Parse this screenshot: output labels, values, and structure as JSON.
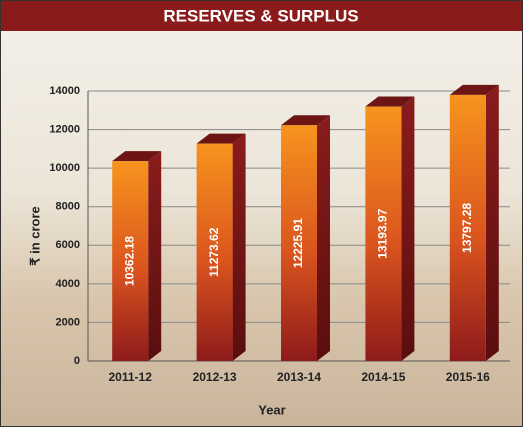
{
  "chart_data": {
    "type": "bar",
    "title": "RESERVES & SURPLUS",
    "x_label": "Year",
    "y_label": "₹ in crore",
    "categories": [
      "2011-12",
      "2012-13",
      "2013-14",
      "2014-15",
      "2015-16"
    ],
    "values": [
      10362.18,
      11273.62,
      12225.91,
      13193.97,
      13797.28
    ],
    "color": "#e8731e",
    "ylim": [
      0,
      14000
    ],
    "yticks": [
      0,
      2000,
      4000,
      6000,
      8000,
      10000,
      12000,
      14000
    ],
    "grid": true
  }
}
